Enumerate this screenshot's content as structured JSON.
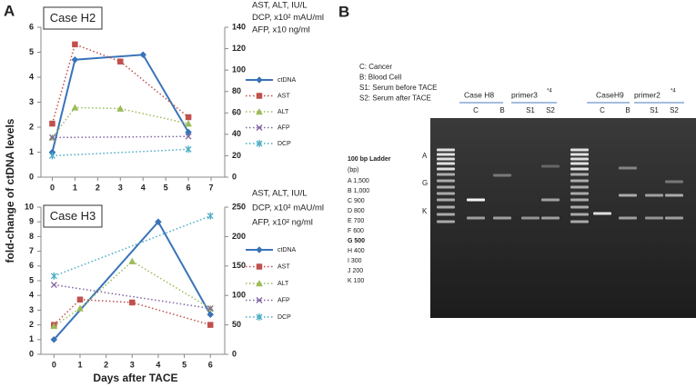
{
  "panel_labels": {
    "a": "A",
    "b": "B"
  },
  "shared_y_label": "fold-change of ctDNA levels",
  "chart_data": [
    {
      "type": "line",
      "title": "Case H2",
      "y2_label": [
        "AST, ALT, IU/L",
        "DCP, x10² mAU/ml",
        "AFP, x10 ng/ml"
      ],
      "xlim": [
        -0.5,
        7.6
      ],
      "xticks": [
        0,
        1,
        2,
        3,
        4,
        5,
        6,
        7
      ],
      "ylim": [
        0,
        6
      ],
      "yticks": [
        0,
        1,
        2,
        3,
        4,
        5,
        6
      ],
      "y2lim": [
        0,
        140
      ],
      "y2ticks": [
        0,
        20,
        40,
        60,
        80,
        100,
        120,
        140
      ],
      "series": [
        {
          "name": "ctDNA",
          "color": "#3a73b8",
          "line_style": "solid",
          "marker": "diamond",
          "x": [
            0,
            1,
            4,
            6
          ],
          "values": [
            1,
            4.7,
            4.9,
            1.8
          ]
        },
        {
          "name": "AST",
          "color": "#c0504d",
          "line_style": "dotted",
          "marker": "square",
          "axis": "y2",
          "x": [
            0,
            1,
            3,
            6
          ],
          "values": [
            50,
            124,
            108,
            56
          ]
        },
        {
          "name": "ALT",
          "color": "#9bbb59",
          "line_style": "dotted",
          "marker": "triangle",
          "axis": "y2",
          "x": [
            0,
            1,
            3,
            6
          ],
          "values": [
            37,
            65,
            64,
            50
          ]
        },
        {
          "name": "AFP",
          "color": "#8064a2",
          "line_style": "dotted",
          "marker": "x",
          "axis": "y2",
          "x": [
            0,
            6
          ],
          "values": [
            37,
            38
          ]
        },
        {
          "name": "DCP",
          "color": "#4bacc6",
          "line_style": "dotted",
          "marker": "asterisk",
          "axis": "y2",
          "x": [
            0,
            6
          ],
          "values": [
            20,
            26
          ]
        }
      ]
    },
    {
      "type": "line",
      "title": "Case H3",
      "x_label": "Days after TACE",
      "y2_label": [
        "AST, ALT, IU/L",
        "DCP, x10² mAU/ml",
        "AFP, x10² ng/ml"
      ],
      "xlim": [
        -0.5,
        6.55
      ],
      "xticks": [
        0,
        1,
        2,
        3,
        4,
        5,
        6
      ],
      "ylim": [
        0,
        10
      ],
      "yticks": [
        0,
        1,
        2,
        3,
        4,
        5,
        6,
        7,
        8,
        9,
        10
      ],
      "y2lim": [
        0,
        250
      ],
      "y2ticks": [
        0,
        50,
        100,
        150,
        200,
        250
      ],
      "series": [
        {
          "name": "ctDNA",
          "color": "#3a73b8",
          "line_style": "solid",
          "marker": "diamond",
          "x": [
            0,
            4,
            6
          ],
          "values": [
            1,
            9,
            2.7
          ]
        },
        {
          "name": "AST",
          "color": "#c0504d",
          "line_style": "dotted",
          "marker": "square",
          "axis": "y2",
          "x": [
            0,
            1,
            3,
            6
          ],
          "values": [
            50,
            93,
            88,
            50
          ]
        },
        {
          "name": "ALT",
          "color": "#9bbb59",
          "line_style": "dotted",
          "marker": "triangle",
          "axis": "y2",
          "x": [
            0,
            1,
            3,
            6
          ],
          "values": [
            48,
            78,
            158,
            78
          ]
        },
        {
          "name": "AFP",
          "color": "#8064a2",
          "line_style": "dotted",
          "marker": "x",
          "axis": "y2",
          "x": [
            0,
            6
          ],
          "values": [
            118,
            78
          ]
        },
        {
          "name": "DCP",
          "color": "#4bacc6",
          "line_style": "dotted",
          "marker": "asterisk",
          "axis": "y2",
          "x": [
            0,
            6
          ],
          "values": [
            133,
            235
          ]
        }
      ]
    }
  ],
  "gel": {
    "legend": [
      "C: Cancer",
      "B: Blood Cell",
      "S1: Serum before TACE",
      "S2: Serum after TACE"
    ],
    "groups": [
      "Case H8",
      "primer3",
      "*4",
      "CaseH9",
      "primer2",
      "*4"
    ],
    "lanes": [
      "C",
      "B",
      "S1",
      "S2",
      "C",
      "B",
      "S1",
      "S2"
    ],
    "ladder_title": "100 bp Ladder",
    "ladder_unit": "(bp)",
    "ladder": [
      "A 1,500",
      "B 1,000",
      "C 900",
      "D 800",
      "E 700",
      "F 600",
      "G 500",
      "H 400",
      "I 300",
      "J 200",
      "K 100"
    ],
    "gel_markers": [
      "A",
      "G",
      "K"
    ]
  }
}
